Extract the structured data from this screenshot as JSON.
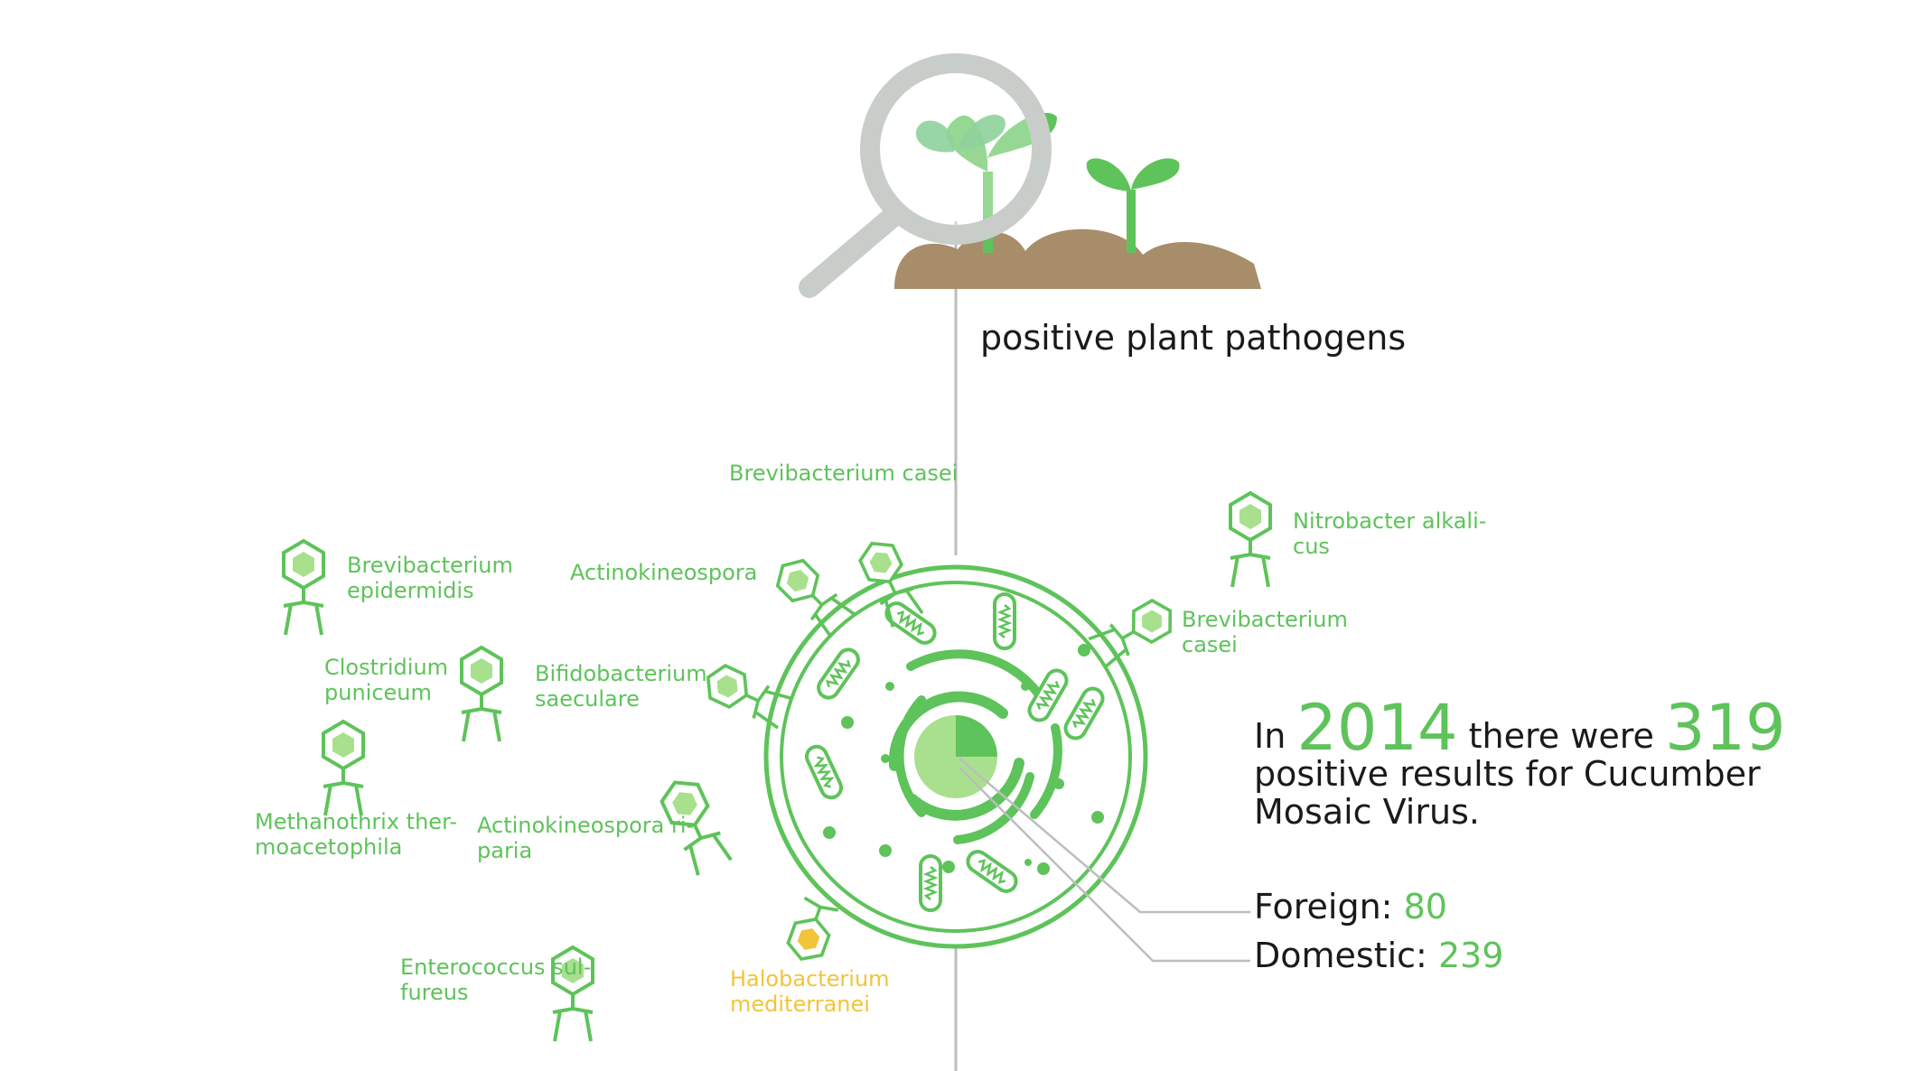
{
  "title": "positive plant pathogens",
  "stat": {
    "prefix": "In",
    "year": "2014",
    "middle": "there were",
    "count": "319",
    "line2": "positive results for Cucumber",
    "line3": "Mosaic Virus."
  },
  "breakdown": {
    "foreign_label": "Foreign:",
    "foreign_value": "80",
    "domestic_label": "Domestic:",
    "domestic_value": "239"
  },
  "pie_data": {
    "foreign": 80,
    "domestic": 239
  },
  "labels": {
    "brevi_casei_top": "Brevibacterium casei",
    "nitrobacter_1": "Nitrobacter alkali-",
    "nitrobacter_2": "cus",
    "brevi_epi_1": "Brevibacterium",
    "brevi_epi_2": "epidermidis",
    "actino": "Actinokineospora",
    "brevi_casei_r_1": "Brevibacterium",
    "brevi_casei_r_2": "casei",
    "clostri_1": "Clostridium",
    "clostri_2": "puniceum",
    "bifido_1": "Bifidobacterium",
    "bifido_2": "saeculare",
    "methano_1": "Methanothrix ther-",
    "methano_2": "moacetophila",
    "actino_r_1": "Actinokineospora ri-",
    "actino_r_2": "paria",
    "entero_1": "Enterococcus sul-",
    "entero_2": "fureus",
    "halo_1": "Halobacterium",
    "halo_2": "mediterranei"
  },
  "colors": {
    "green": "#5ec35a",
    "light_green": "#a8e08e",
    "yellow": "#f2c43a",
    "soil": "#a88d6a",
    "lens_gray": "#c9cdc9",
    "line_gray": "#bdbdbd"
  }
}
